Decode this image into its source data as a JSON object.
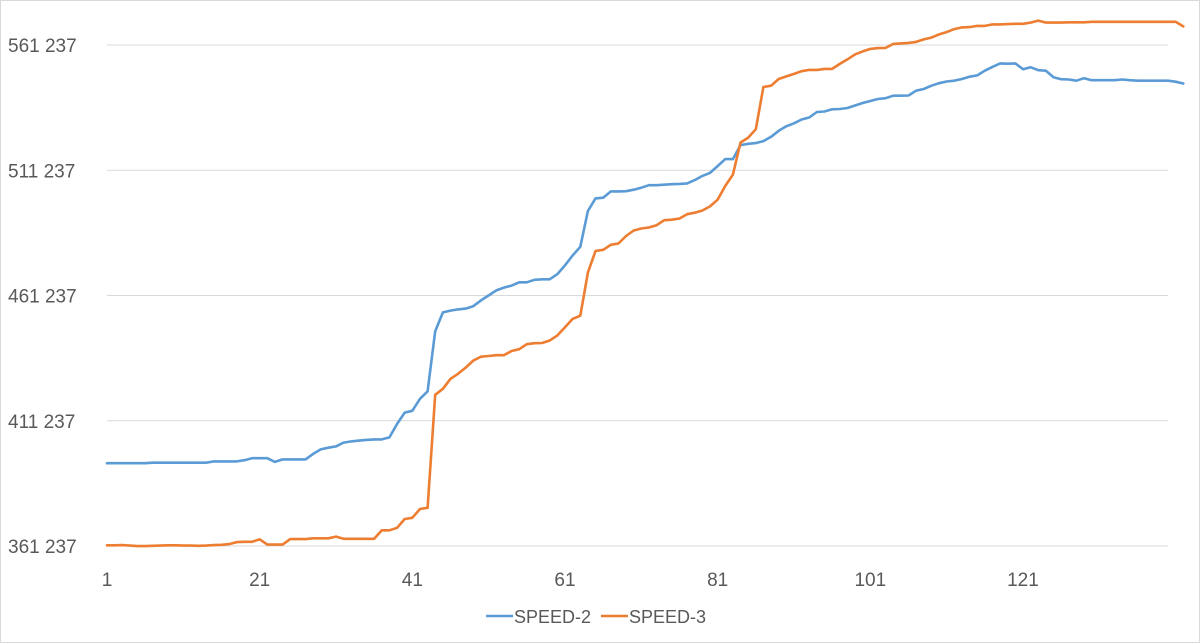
{
  "chart_data": {
    "type": "line",
    "title": "",
    "xlabel": "",
    "ylabel": "",
    "ylim": [
      361237,
      571237
    ],
    "yticks": [
      361237,
      411237,
      461237,
      511237,
      561237
    ],
    "ytick_labels": [
      "361 237",
      "411 237",
      "461 237",
      "511 237",
      "561 237"
    ],
    "xlim": [
      1,
      140
    ],
    "xticks": [
      1,
      21,
      41,
      61,
      81,
      101,
      121
    ],
    "xtick_labels": [
      "1",
      "21",
      "41",
      "61",
      "81",
      "101",
      "121"
    ],
    "grid": "horizontal",
    "legend_position": "bottom",
    "series": [
      {
        "name": "SPEED-2",
        "color": "#5b9bd5",
        "values": [
          394300,
          394300,
          394300,
          394300,
          394300,
          394300,
          394500,
          394500,
          394500,
          394500,
          394500,
          394500,
          394500,
          394500,
          395000,
          395000,
          395000,
          395000,
          395500,
          396300,
          396300,
          396300,
          394800,
          395800,
          395800,
          395800,
          395800,
          398000,
          399800,
          400500,
          401000,
          402500,
          403000,
          403300,
          403600,
          403800,
          403800,
          404600,
          410000,
          414500,
          415200,
          420000,
          423000,
          447000,
          454500,
          455200,
          455700,
          456000,
          457000,
          459300,
          461300,
          463300,
          464400,
          465200,
          466500,
          466500,
          467500,
          467700,
          467700,
          469800,
          473300,
          477200,
          480700,
          495000,
          500000,
          500300,
          502800,
          502800,
          502900,
          503500,
          504300,
          505300,
          505300,
          505500,
          505700,
          505800,
          506000,
          507300,
          509000,
          510200,
          512900,
          515700,
          515700,
          521300,
          521800,
          522100,
          522900,
          524600,
          527000,
          528800,
          530000,
          531500,
          532300,
          534500,
          534700,
          535600,
          535700,
          536100,
          537100,
          538100,
          538900,
          539700,
          540000,
          541000,
          541000,
          541100,
          543000,
          543700,
          545000,
          546000,
          546700,
          547000,
          547700,
          548600,
          549100,
          551000,
          552500,
          553900,
          553800,
          553900,
          551600,
          552400,
          551200,
          551000,
          548400,
          547600,
          547500,
          547000,
          548000,
          547200,
          547200,
          547200,
          547200,
          547500,
          547200,
          547000,
          547000,
          547000,
          547000,
          547000,
          546600,
          545900
        ]
      },
      {
        "name": "SPEED-3",
        "color": "#ed7d31",
        "values": [
          361500,
          361500,
          361600,
          361400,
          361200,
          361200,
          361300,
          361400,
          361500,
          361500,
          361400,
          361400,
          361300,
          361400,
          361600,
          361700,
          362000,
          362800,
          362900,
          362900,
          363900,
          361800,
          361800,
          361800,
          364000,
          364000,
          364000,
          364300,
          364300,
          364300,
          365000,
          364100,
          364100,
          364100,
          364100,
          364100,
          367500,
          367500,
          368500,
          372000,
          372500,
          376000,
          376500,
          421600,
          424000,
          428000,
          430000,
          432500,
          435300,
          436800,
          437100,
          437400,
          437400,
          439100,
          439800,
          441800,
          442200,
          442300,
          443300,
          445300,
          448600,
          451900,
          453200,
          470400,
          479000,
          479500,
          481500,
          482000,
          485000,
          487200,
          488000,
          488400,
          489300,
          491300,
          491500,
          492000,
          493700,
          494300,
          495200,
          496800,
          499500,
          505000,
          509500,
          522300,
          524300,
          527600,
          544500,
          545000,
          547700,
          548700,
          549700,
          550800,
          551300,
          551300,
          551700,
          551700,
          553700,
          555500,
          557500,
          558700,
          559700,
          560000,
          560100,
          561700,
          561900,
          562100,
          562500,
          563500,
          564200,
          565500,
          566400,
          567600,
          568300,
          568400,
          568900,
          568900,
          569500,
          569500,
          569600,
          569700,
          569700,
          570200,
          571000,
          570200,
          570200,
          570200,
          570300,
          570300,
          570300,
          570500,
          570500,
          570500,
          570500,
          570500,
          570500,
          570500,
          570500,
          570500,
          570500,
          570500,
          570500,
          568700
        ]
      }
    ]
  }
}
